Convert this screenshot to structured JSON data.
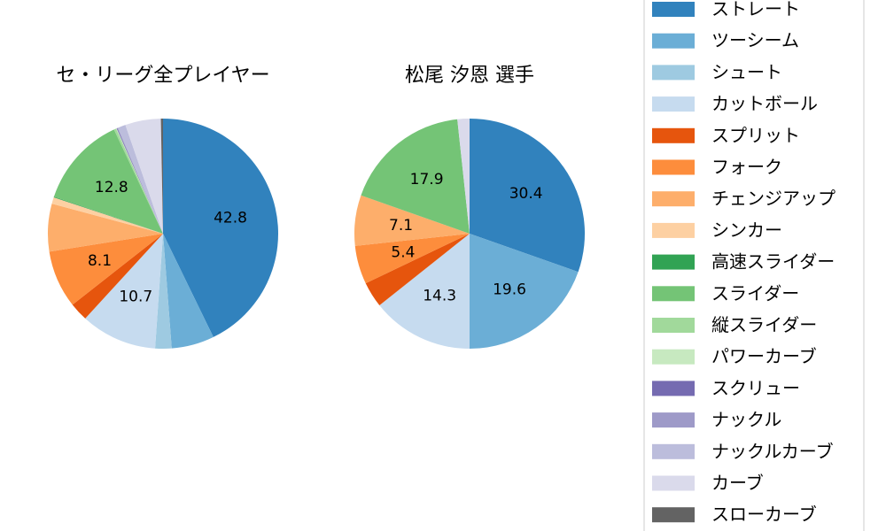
{
  "chart_data": [
    {
      "type": "pie",
      "title": "セ・リーグ全プレイヤー",
      "slices": [
        {
          "name": "ストレート",
          "value": 42.8,
          "label": "42.8"
        },
        {
          "name": "ツーシーム",
          "value": 6.0,
          "label": ""
        },
        {
          "name": "シュート",
          "value": 2.3,
          "label": ""
        },
        {
          "name": "カットボール",
          "value": 10.7,
          "label": "10.7"
        },
        {
          "name": "スプリット",
          "value": 2.6,
          "label": ""
        },
        {
          "name": "フォーク",
          "value": 8.1,
          "label": "8.1"
        },
        {
          "name": "チェンジアップ",
          "value": 6.7,
          "label": ""
        },
        {
          "name": "シンカー",
          "value": 0.9,
          "label": ""
        },
        {
          "name": "高速スライダー",
          "value": 0.1,
          "label": ""
        },
        {
          "name": "スライダー",
          "value": 12.8,
          "label": "12.8"
        },
        {
          "name": "縦スライダー",
          "value": 0.3,
          "label": ""
        },
        {
          "name": "パワーカーブ",
          "value": 0.1,
          "label": ""
        },
        {
          "name": "スクリュー",
          "value": 0.1,
          "label": ""
        },
        {
          "name": "ナックル",
          "value": 0.1,
          "label": ""
        },
        {
          "name": "ナックルカーブ",
          "value": 1.1,
          "label": ""
        },
        {
          "name": "カーブ",
          "value": 5.0,
          "label": ""
        },
        {
          "name": "スローカーブ",
          "value": 0.3,
          "label": ""
        }
      ]
    },
    {
      "type": "pie",
      "title": "松尾 汐恩  選手",
      "slices": [
        {
          "name": "ストレート",
          "value": 30.4,
          "label": "30.4"
        },
        {
          "name": "ツーシーム",
          "value": 19.6,
          "label": "19.6"
        },
        {
          "name": "カットボール",
          "value": 14.3,
          "label": "14.3"
        },
        {
          "name": "スプリット",
          "value": 3.6,
          "label": ""
        },
        {
          "name": "フォーク",
          "value": 5.4,
          "label": "5.4"
        },
        {
          "name": "チェンジアップ",
          "value": 7.1,
          "label": "7.1"
        },
        {
          "name": "スライダー",
          "value": 17.9,
          "label": "17.9"
        },
        {
          "name": "カーブ",
          "value": 1.7,
          "label": ""
        }
      ]
    }
  ],
  "legend": {
    "placement": "right",
    "items": [
      {
        "name": "ストレート",
        "color": "#3182bd"
      },
      {
        "name": "ツーシーム",
        "color": "#6baed6"
      },
      {
        "name": "シュート",
        "color": "#9ecae1"
      },
      {
        "name": "カットボール",
        "color": "#c6dbef"
      },
      {
        "name": "スプリット",
        "color": "#e6550d"
      },
      {
        "name": "フォーク",
        "color": "#fd8d3c"
      },
      {
        "name": "チェンジアップ",
        "color": "#fdae6b"
      },
      {
        "name": "シンカー",
        "color": "#fdd0a2"
      },
      {
        "name": "高速スライダー",
        "color": "#31a354"
      },
      {
        "name": "スライダー",
        "color": "#74c476"
      },
      {
        "name": "縦スライダー",
        "color": "#a1d99b"
      },
      {
        "name": "パワーカーブ",
        "color": "#c7e9c0"
      },
      {
        "name": "スクリュー",
        "color": "#756bb1"
      },
      {
        "name": "ナックル",
        "color": "#9e9ac8"
      },
      {
        "name": "ナックルカーブ",
        "color": "#bcbddc"
      },
      {
        "name": "カーブ",
        "color": "#dadaeb"
      },
      {
        "name": "スローカーブ",
        "color": "#636363"
      }
    ]
  }
}
